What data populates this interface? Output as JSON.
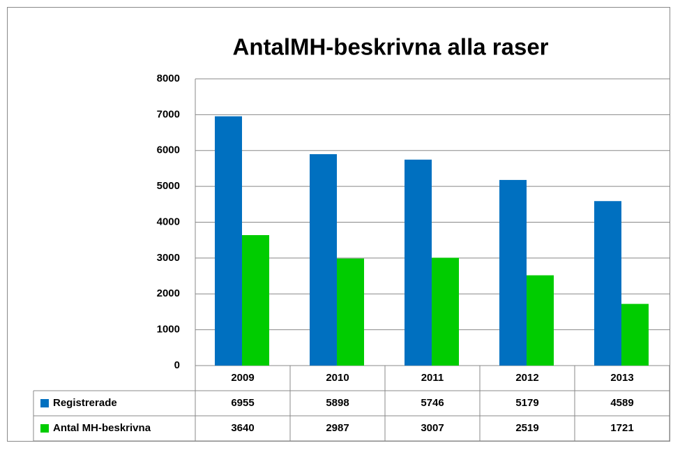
{
  "chart_data": {
    "type": "bar",
    "title": "AntalMH-beskrivna alla raser",
    "categories": [
      "2009",
      "2010",
      "2011",
      "2012",
      "2013"
    ],
    "series": [
      {
        "name": "Registrerade",
        "color": "#0070c0",
        "values": [
          6955,
          5898,
          5746,
          5179,
          4589
        ]
      },
      {
        "name": "Antal MH-beskrivna",
        "color": "#00cc00",
        "values": [
          3640,
          2987,
          3007,
          2519,
          1721
        ]
      }
    ],
    "ylim": [
      0,
      8000
    ],
    "yticks": [
      0,
      1000,
      2000,
      3000,
      4000,
      5000,
      6000,
      7000,
      8000
    ],
    "grid": true
  }
}
